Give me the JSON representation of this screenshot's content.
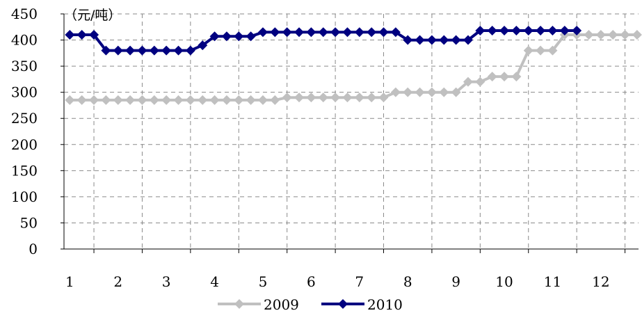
{
  "chart_data": {
    "type": "line",
    "unit_label": "（元/吨）",
    "xlabel": "",
    "ylabel": "",
    "x_ticks": [
      "1",
      "2",
      "3",
      "4",
      "5",
      "6",
      "7",
      "8",
      "9",
      "10",
      "11",
      "12"
    ],
    "y_ticks": [
      "0",
      "50",
      "100",
      "150",
      "200",
      "250",
      "300",
      "350",
      "400",
      "450"
    ],
    "ylim": [
      0,
      450
    ],
    "xlim": [
      0.88,
      12.78
    ],
    "grid": true,
    "legend_position": "bottom",
    "series": [
      {
        "name": "2009",
        "color": "#c0c0c0",
        "marker": "diamond",
        "x": [
          1.0,
          1.25,
          1.5,
          1.75,
          2.0,
          2.25,
          2.5,
          2.75,
          3.0,
          3.25,
          3.5,
          3.75,
          4.0,
          4.25,
          4.5,
          4.75,
          5.0,
          5.25,
          5.5,
          5.75,
          6.0,
          6.25,
          6.5,
          6.75,
          7.0,
          7.25,
          7.5,
          7.75,
          8.0,
          8.25,
          8.5,
          8.75,
          9.0,
          9.25,
          9.5,
          9.75,
          10.0,
          10.25,
          10.5,
          10.75,
          11.0,
          11.25,
          11.5,
          11.75,
          12.0,
          12.25,
          12.5,
          12.75
        ],
        "values": [
          285,
          285,
          285,
          285,
          285,
          285,
          285,
          285,
          285,
          285,
          285,
          285,
          285,
          285,
          285,
          285,
          285,
          285,
          290,
          290,
          290,
          290,
          290,
          290,
          290,
          290,
          290,
          300,
          300,
          300,
          300,
          300,
          300,
          320,
          320,
          330,
          330,
          330,
          380,
          380,
          380,
          410,
          410,
          410,
          410,
          410,
          410,
          410
        ]
      },
      {
        "name": "2010",
        "color": "#000080",
        "marker": "diamond",
        "x": [
          1.0,
          1.25,
          1.5,
          1.75,
          2.0,
          2.25,
          2.5,
          2.75,
          3.0,
          3.25,
          3.5,
          3.75,
          4.0,
          4.25,
          4.5,
          4.75,
          5.0,
          5.25,
          5.5,
          5.75,
          6.0,
          6.25,
          6.5,
          6.75,
          7.0,
          7.25,
          7.5,
          7.75,
          8.0,
          8.25,
          8.5,
          8.75,
          9.0,
          9.25,
          9.5,
          9.75,
          10.0,
          10.25,
          10.5,
          10.75,
          11.0,
          11.25,
          11.5
        ],
        "values": [
          410,
          410,
          410,
          380,
          380,
          380,
          380,
          380,
          380,
          380,
          380,
          390,
          407,
          407,
          407,
          407,
          415,
          415,
          415,
          415,
          415,
          415,
          415,
          415,
          415,
          415,
          415,
          415,
          400,
          400,
          400,
          400,
          400,
          400,
          418,
          418,
          418,
          418,
          418,
          418,
          418,
          418,
          418
        ]
      }
    ]
  }
}
